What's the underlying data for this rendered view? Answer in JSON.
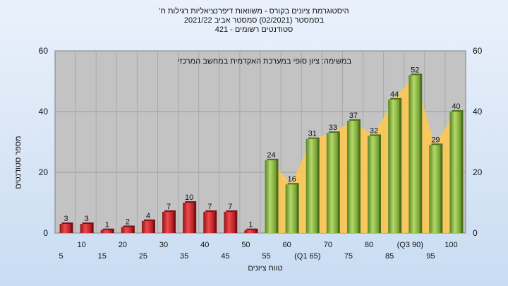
{
  "header": {
    "line1": "היסטוגרמת ציונים בקורס - משוואות דיפרנציאליות רגילות ח'",
    "line2": "בסמסטר  (02/2021)  סמסטר אביב 2021/22",
    "line3": "סטודנטים רשומים - 421"
  },
  "chart_data": {
    "type": "bar",
    "title": "היסטוגרמת ציונים בקורס - משוואות דיפרנציאליות רגילות ח'",
    "subtitle": "בסמסטר  (02/2021)  סמסטר אביב 2021/22 | סטודנטים רשומים - 421",
    "xlabel": "טווח ציונים",
    "ylabel": "מספר סטודנטים",
    "ylim": [
      0,
      60
    ],
    "yticks": [
      0,
      20,
      40,
      60
    ],
    "grid": true,
    "annotation": "במשימה: ציון סופי במערכת האקדמית במחשב המרכזי",
    "categories": [
      "5",
      "10",
      "15",
      "20",
      "25",
      "30",
      "35",
      "40",
      "45",
      "50",
      "55",
      "60",
      "(Q1 65)",
      "70",
      "75",
      "80",
      "85",
      "(Q3 90)",
      "95",
      "100"
    ],
    "values": [
      3,
      3,
      1,
      2,
      4,
      7,
      10,
      7,
      7,
      1,
      24,
      16,
      31,
      33,
      37,
      32,
      44,
      52,
      29,
      40
    ],
    "value_labels": [
      "3",
      "3",
      "1",
      "2",
      "4",
      "7",
      "10",
      "7",
      "7",
      "1",
      "24",
      "16",
      "31",
      "33",
      "37",
      "32",
      "44",
      "52",
      "29",
      "40"
    ],
    "bar_colors": {
      "fail": "#d8262b",
      "pass": "#8dbb3d"
    },
    "area_color": "#ffc94d",
    "fail_threshold_category": "50"
  }
}
